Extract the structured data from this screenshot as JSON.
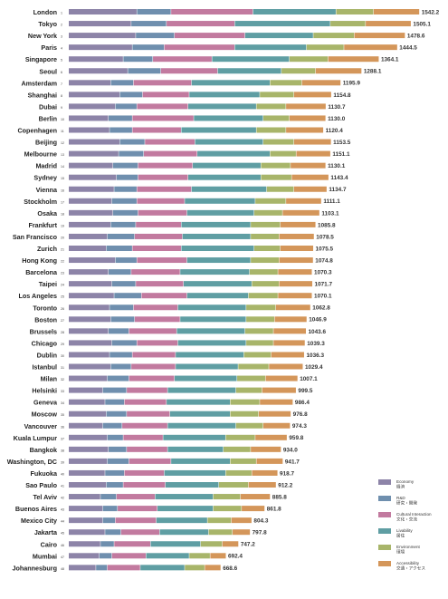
{
  "chart_data": {
    "type": "bar",
    "orientation": "horizontal",
    "stacked": true,
    "categories": [
      "London",
      "Tokyo",
      "New York",
      "Paris",
      "Singapore",
      "Seoul",
      "Amsterdam",
      "Shanghai",
      "Dubai",
      "Berlin",
      "Copenhagen",
      "Beijing",
      "Melbourne",
      "Madrid",
      "Sydney",
      "Vienna",
      "Stockholm",
      "Osaka",
      "Frankfurt",
      "San Francisco",
      "Zurich",
      "Hong Kong",
      "Barcelona",
      "Taipei",
      "Los Angeles",
      "Toronto",
      "Boston",
      "Brussels",
      "Chicago",
      "Dublin",
      "Istanbul",
      "Milan",
      "Helsinki",
      "Geneva",
      "Moscow",
      "Vancouver",
      "Kuala Lumpur",
      "Bangkok",
      "Washington, DC",
      "Fukuoka",
      "Sao Paulo",
      "Tel Aviv",
      "Buenos Aires",
      "Mexico City",
      "Jakarta",
      "Cairo",
      "Mumbai",
      "Johannesburg"
    ],
    "ranks": [
      "1",
      "2",
      "3",
      "4",
      "5",
      "6",
      "7",
      "8",
      "9",
      "10",
      "11",
      "12",
      "13",
      "14",
      "15",
      "16",
      "17",
      "18",
      "19",
      "20",
      "21",
      "22",
      "23",
      "24",
      "25",
      "26",
      "27",
      "28",
      "29",
      "30",
      "31",
      "32",
      "33",
      "34",
      "35",
      "36",
      "37",
      "38",
      "39",
      "40",
      "41",
      "42",
      "43",
      "44",
      "45",
      "46",
      "47",
      "48"
    ],
    "totals": [
      "1542.2",
      "1505.1",
      "1478.6",
      "1444.5",
      "1364.1",
      "1288.1",
      "1195.9",
      "1154.8",
      "1130.7",
      "1130.0",
      "1120.4",
      "1153.5",
      "1151.1",
      "1130.1",
      "1143.4",
      "1134.7",
      "1111.1",
      "1103.1",
      "1085.8",
      "1078.5",
      "1075.5",
      "1074.8",
      "1070.3",
      "1071.7",
      "1070.1",
      "1062.8",
      "1046.9",
      "1043.6",
      "1039.3",
      "1036.3",
      "1029.4",
      "1007.1",
      "999.5",
      "986.4",
      "976.8",
      "974.3",
      "959.8",
      "934.0",
      "941.7",
      "918.7",
      "912.2",
      "885.8",
      "861.8",
      "804.3",
      "797.8",
      "747.2",
      "692.4",
      "668.6"
    ],
    "series": [
      {
        "name": "Economy",
        "color": "#8d84a8",
        "values": [
          300,
          275,
          295,
          280,
          240,
          260,
          185,
          225,
          205,
          175,
          180,
          225,
          220,
          195,
          210,
          200,
          190,
          195,
          185,
          170,
          165,
          205,
          175,
          190,
          200,
          180,
          185,
          175,
          190,
          180,
          185,
          170,
          150,
          160,
          165,
          150,
          170,
          175,
          170,
          160,
          165,
          140,
          150,
          150,
          160,
          140,
          135,
          120
        ]
      },
      {
        "name": "R&D",
        "color": "#6f8fae",
        "values": [
          150,
          155,
          170,
          140,
          130,
          145,
          100,
          100,
          95,
          105,
          100,
          110,
          110,
          110,
          95,
          100,
          110,
          110,
          110,
          120,
          115,
          95,
          100,
          105,
          120,
          105,
          105,
          90,
          110,
          100,
          90,
          95,
          105,
          85,
          90,
          85,
          70,
          80,
          95,
          85,
          75,
          70,
          65,
          55,
          70,
          60,
          55,
          50
        ]
      },
      {
        "name": "Cultural Interaction",
        "color": "#c27a9f",
        "values": [
          360,
          300,
          310,
          310,
          260,
          250,
          255,
          205,
          225,
          270,
          215,
          220,
          235,
          240,
          220,
          240,
          210,
          215,
          200,
          210,
          215,
          220,
          215,
          210,
          200,
          195,
          200,
          210,
          180,
          190,
          195,
          200,
          180,
          185,
          190,
          200,
          175,
          180,
          185,
          175,
          185,
          170,
          175,
          180,
          170,
          160,
          150,
          145
        ]
      },
      {
        "name": "Livability",
        "color": "#5f9ea3",
        "values": [
          365,
          420,
          300,
          315,
          340,
          280,
          345,
          310,
          300,
          305,
          330,
          300,
          320,
          300,
          320,
          330,
          310,
          295,
          305,
          300,
          320,
          280,
          305,
          300,
          270,
          300,
          290,
          300,
          300,
          300,
          275,
          275,
          300,
          280,
          265,
          300,
          275,
          245,
          260,
          270,
          235,
          255,
          245,
          225,
          215,
          220,
          190,
          195
        ]
      },
      {
        "name": "Environment",
        "color": "#a8b56a",
        "values": [
          165,
          155,
          180,
          165,
          170,
          150,
          140,
          150,
          130,
          115,
          130,
          135,
          115,
          130,
          135,
          120,
          135,
          125,
          130,
          125,
          115,
          125,
          125,
          120,
          130,
          130,
          125,
          125,
          120,
          120,
          135,
          125,
          115,
          130,
          125,
          120,
          130,
          120,
          115,
          115,
          130,
          120,
          125,
          105,
          105,
          95,
          92,
          88
        ]
      },
      {
        "name": "Accessibility",
        "color": "#d4965a",
        "values": [
          202,
          200,
          224,
          235,
          224,
          203,
          171,
          165,
          176,
          160,
          165,
          164,
          151,
          155,
          163,
          145,
          156,
          163,
          156,
          154,
          146,
          150,
          150,
          147,
          150,
          153,
          142,
          144,
          139,
          146,
          150,
          142,
          150,
          146,
          142,
          119,
          140,
          134,
          117,
          114,
          122,
          131,
          102,
          90,
          78,
          72,
          70,
          71
        ]
      }
    ],
    "legend": {
      "position": "bottom-right",
      "entries": [
        {
          "en": "Economy",
          "jp": "経済"
        },
        {
          "en": "R&D",
          "jp": "研究・開発"
        },
        {
          "en": "Cultural Interaction",
          "jp": "文化・交流"
        },
        {
          "en": "Livability",
          "jp": "居住"
        },
        {
          "en": "Environment",
          "jp": "環境"
        },
        {
          "en": "Accessibility",
          "jp": "交通・アクセス"
        }
      ]
    },
    "x_max": 1750,
    "grid": false
  }
}
